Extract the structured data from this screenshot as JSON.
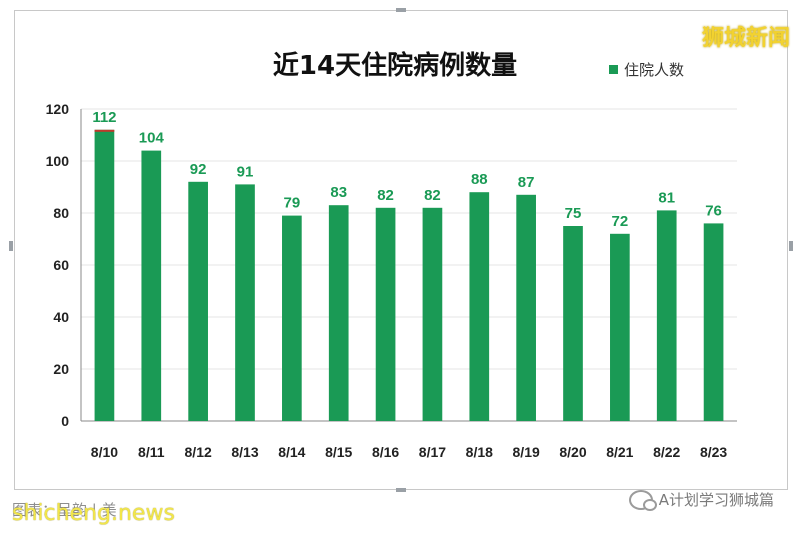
{
  "chart_data": {
    "type": "bar",
    "title": "近14天住院病例数量",
    "legend": [
      "住院人数"
    ],
    "categories": [
      "8/10",
      "8/11",
      "8/12",
      "8/13",
      "8/14",
      "8/15",
      "8/16",
      "8/17",
      "8/18",
      "8/19",
      "8/20",
      "8/21",
      "8/22",
      "8/23"
    ],
    "series": [
      {
        "name": "住院人数",
        "values": [
          112,
          104,
          92,
          91,
          79,
          83,
          82,
          82,
          88,
          87,
          75,
          72,
          81,
          76
        ]
      }
    ],
    "yticks": [
      0,
      20,
      40,
      60,
      80,
      100,
      120
    ],
    "ylim": [
      0,
      120
    ],
    "grid": true,
    "legend_position": "top-right",
    "colors": {
      "bar": "#1a9a55",
      "label": "#1a9a55",
      "top_accent": "#c0392b"
    }
  },
  "overlays": {
    "brand": "狮城新闻",
    "watermark": "shicheng.news",
    "faded_note": "图表：呈韵 | 美",
    "wechat": "A计划学习狮城篇"
  }
}
